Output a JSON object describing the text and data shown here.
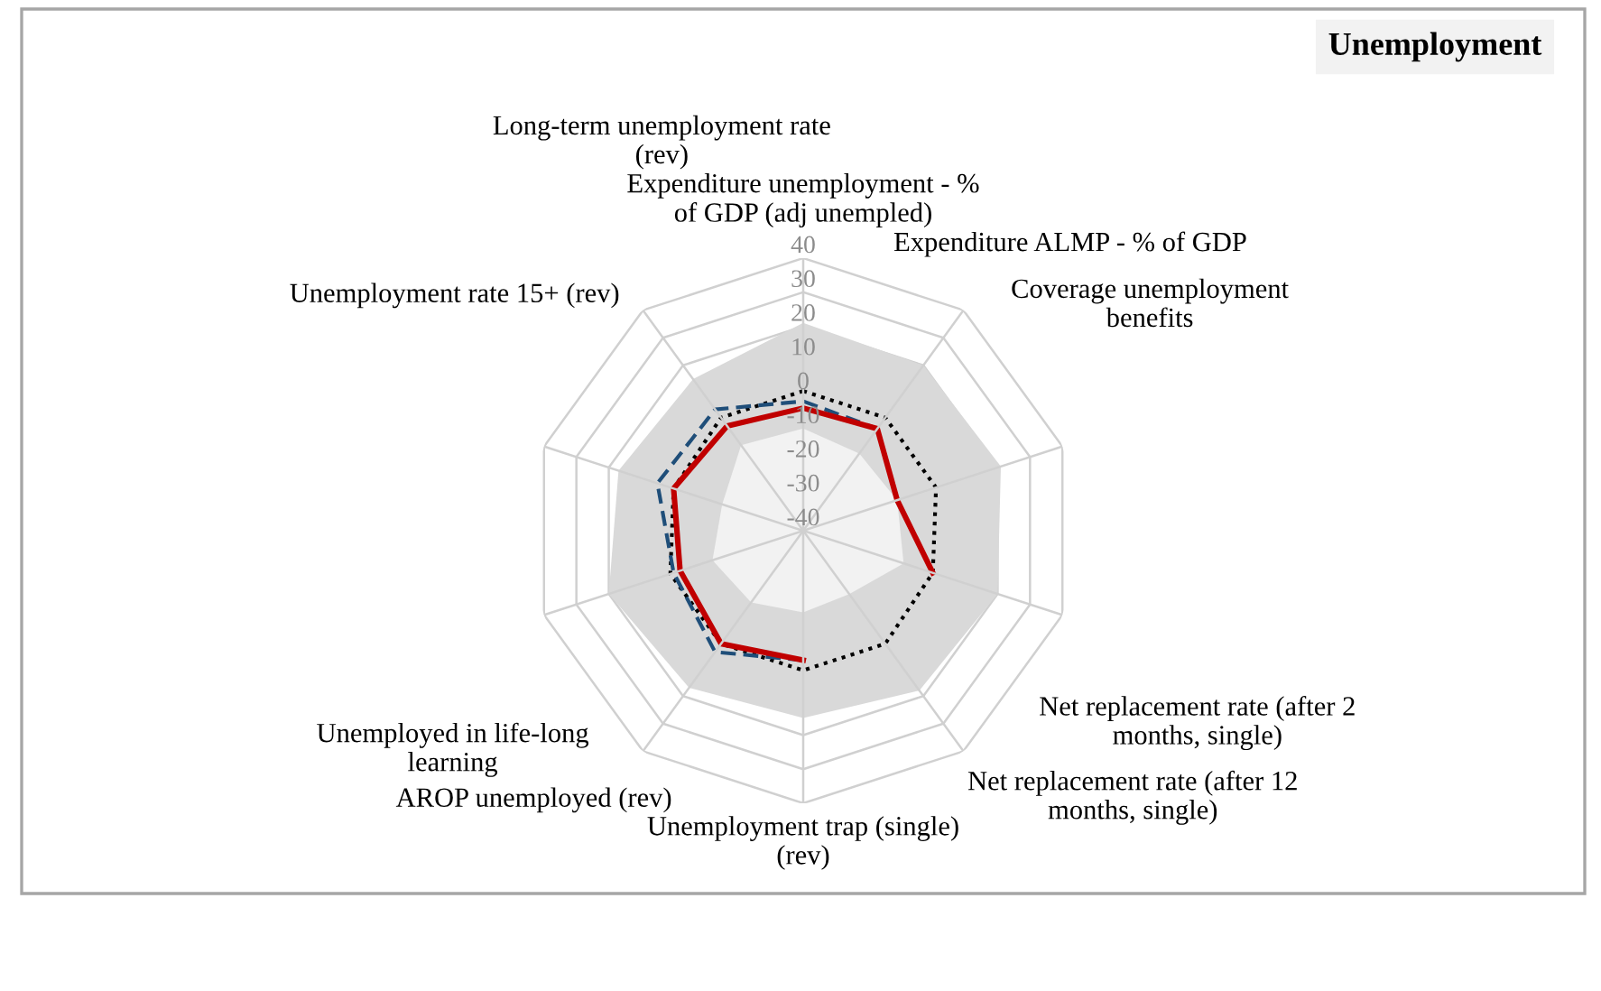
{
  "chart_data": {
    "type": "radar",
    "title": "Unemployment",
    "categories": [
      "Expenditure unemployment - %\nof GDP (adj unempled)",
      "Expenditure ALMP - % of GDP",
      "Coverage unemployment\nbenefits",
      "Net replacement rate (after 2\nmonths, single)",
      "Net replacement rate (after 12\nmonths, single)",
      "Unemployment trap (single)\n(rev)",
      "AROP unemployed (rev)",
      "Unemployed in life-long\nlearning",
      "Unemployment rate 15+ (rev)",
      "Long-term unemployment rate\n(rev)"
    ],
    "series": [
      {
        "type": "area",
        "color": "#d9d9d9",
        "values": [
          21,
          20,
          21,
          20,
          18,
          15,
          17,
          20,
          17,
          15
        ]
      },
      {
        "type": "area",
        "color": "#f2f2f2",
        "values": [
          -10,
          -12,
          -11,
          -9,
          -17,
          -16,
          -14,
          -12,
          -15,
          -9
        ]
      },
      {
        "color": "#000000",
        "line_style": "dotted",
        "values": [
          1,
          1,
          1,
          0,
          1,
          1,
          1,
          1,
          0,
          1
        ]
      },
      {
        "color": "#1f4e79",
        "line_style": "dashed",
        "values": [
          -2,
          -3,
          -11,
          0,
          null,
          -2,
          4,
          0,
          5,
          4
        ]
      },
      {
        "color": "#c00000",
        "line_style": "solid",
        "values": [
          -4,
          -3,
          -11,
          0,
          null,
          -2,
          1,
          -2,
          0,
          -2
        ]
      }
    ],
    "ylim": [
      -40,
      40
    ],
    "yticks": [
      -40,
      -30,
      -20,
      -10,
      0,
      10,
      20,
      30,
      40
    ],
    "grid": true
  }
}
